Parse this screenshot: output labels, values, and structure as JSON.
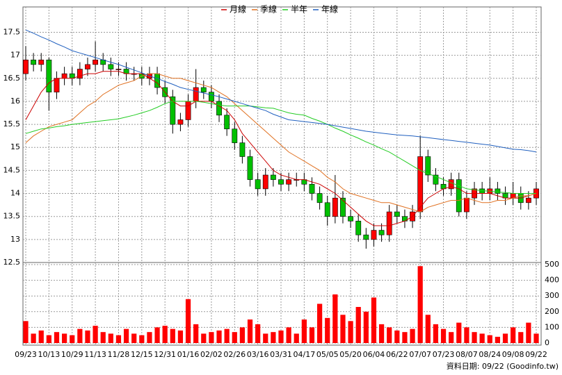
{
  "chart_data": {
    "type": "candlestick",
    "footer": "資料日期: 09/22 (Goodinfo.tw)",
    "categories": [
      "09/23",
      null,
      null,
      "10/13",
      null,
      null,
      "10/29",
      null,
      null,
      "11/13",
      null,
      null,
      "11/28",
      null,
      null,
      "12/15",
      null,
      null,
      "12/31",
      null,
      null,
      "01/16",
      null,
      null,
      "02/02",
      null,
      null,
      "02/26",
      null,
      null,
      "03/16",
      null,
      null,
      "03/31",
      null,
      null,
      "04/17",
      null,
      null,
      "05/05",
      null,
      null,
      "05/20",
      null,
      null,
      "06/04",
      null,
      null,
      "06/22",
      null,
      null,
      "07/07",
      null,
      null,
      "07/23",
      null,
      null,
      "08/07",
      null,
      null,
      "08/24",
      null,
      null,
      "09/08",
      null,
      null,
      "09/22"
    ],
    "open": [
      16.6,
      16.9,
      16.8,
      16.9,
      16.2,
      16.5,
      16.6,
      16.5,
      16.7,
      16.8,
      16.9,
      16.8,
      16.7,
      16.7,
      16.6,
      16.6,
      16.5,
      16.6,
      16.3,
      16.1,
      15.5,
      15.6,
      16.0,
      16.3,
      16.2,
      16.0,
      15.7,
      15.4,
      15.1,
      14.8,
      14.3,
      14.1,
      14.4,
      14.3,
      14.2,
      14.3,
      14.3,
      14.2,
      14.0,
      13.8,
      13.5,
      13.9,
      13.5,
      13.4,
      13.1,
      13.0,
      13.2,
      13.1,
      13.6,
      13.5,
      13.4,
      13.6,
      14.8,
      14.4,
      14.2,
      14.1,
      14.3,
      13.6,
      13.9,
      14.1,
      14.0,
      14.1,
      14.0,
      13.9,
      14.0,
      13.8,
      13.9
    ],
    "high": [
      17.2,
      17.05,
      17.05,
      16.95,
      16.65,
      16.75,
      16.75,
      16.85,
      16.95,
      17.3,
      17.05,
      16.95,
      16.85,
      16.85,
      16.75,
      16.75,
      16.75,
      16.75,
      16.45,
      16.25,
      15.75,
      16.15,
      16.7,
      16.45,
      16.35,
      16.15,
      15.85,
      15.55,
      15.25,
      14.95,
      14.45,
      14.55,
      14.55,
      14.45,
      14.45,
      14.45,
      14.45,
      14.35,
      14.15,
      13.95,
      14.4,
      14.05,
      13.65,
      13.55,
      13.25,
      13.35,
      13.35,
      13.75,
      13.75,
      13.65,
      13.75,
      15.25,
      14.95,
      14.55,
      14.35,
      14.45,
      14.45,
      14.05,
      14.25,
      14.25,
      14.35,
      14.25,
      14.15,
      14.25,
      14.15,
      14.05,
      14.25
    ],
    "low": [
      16.45,
      16.65,
      16.65,
      15.8,
      16.05,
      16.35,
      16.35,
      16.35,
      16.55,
      16.65,
      16.65,
      16.55,
      16.55,
      16.45,
      16.45,
      16.35,
      16.35,
      16.15,
      15.95,
      15.3,
      15.35,
      15.45,
      15.85,
      16.05,
      15.85,
      15.55,
      15.25,
      14.95,
      14.65,
      14.15,
      13.95,
      13.95,
      14.15,
      14.05,
      14.05,
      14.15,
      14.05,
      13.85,
      13.65,
      13.3,
      13.35,
      13.35,
      13.25,
      12.95,
      12.8,
      12.85,
      12.95,
      12.95,
      13.35,
      13.25,
      13.25,
      13.45,
      14.25,
      14.05,
      13.95,
      13.95,
      13.5,
      13.45,
      13.75,
      13.85,
      13.85,
      13.85,
      13.75,
      13.75,
      13.65,
      13.65,
      13.75
    ],
    "close": [
      16.9,
      16.8,
      16.9,
      16.2,
      16.5,
      16.6,
      16.5,
      16.7,
      16.8,
      16.9,
      16.8,
      16.7,
      16.7,
      16.6,
      16.6,
      16.5,
      16.6,
      16.3,
      16.1,
      15.5,
      15.6,
      16.0,
      16.3,
      16.2,
      16.0,
      15.7,
      15.4,
      15.1,
      14.8,
      14.3,
      14.1,
      14.4,
      14.3,
      14.2,
      14.3,
      14.3,
      14.2,
      14.0,
      13.8,
      13.5,
      13.9,
      13.5,
      13.4,
      13.1,
      13.0,
      13.2,
      13.1,
      13.6,
      13.5,
      13.4,
      13.6,
      14.8,
      14.4,
      14.2,
      14.1,
      14.3,
      13.6,
      13.9,
      14.1,
      14.0,
      14.1,
      14.0,
      13.9,
      14.0,
      13.8,
      13.9,
      14.1
    ],
    "volume": [
      140,
      60,
      80,
      50,
      70,
      60,
      50,
      90,
      80,
      110,
      70,
      60,
      50,
      90,
      60,
      50,
      70,
      100,
      110,
      90,
      80,
      280,
      120,
      60,
      70,
      80,
      90,
      70,
      100,
      150,
      120,
      60,
      70,
      80,
      100,
      60,
      150,
      100,
      250,
      160,
      310,
      180,
      140,
      230,
      200,
      290,
      120,
      100,
      80,
      70,
      90,
      490,
      180,
      120,
      90,
      70,
      130,
      100,
      70,
      60,
      50,
      40,
      60,
      100,
      70,
      130,
      60
    ],
    "up_color": "#ff0000",
    "down_color": "#00c000",
    "volume_color": "#ff0000",
    "series": [
      {
        "name": "月線",
        "color": "#cc0000",
        "values": [
          15.6,
          15.9,
          16.2,
          16.4,
          16.5,
          16.5,
          16.5,
          16.55,
          16.6,
          16.6,
          16.65,
          16.65,
          16.65,
          16.6,
          16.6,
          16.6,
          16.5,
          16.4,
          16.2,
          16.0,
          15.9,
          15.9,
          16.0,
          16.0,
          16.0,
          15.9,
          15.8,
          15.6,
          15.3,
          15.1,
          14.9,
          14.7,
          14.5,
          14.4,
          14.35,
          14.3,
          14.3,
          14.25,
          14.2,
          14.1,
          14.0,
          13.85,
          13.7,
          13.55,
          13.4,
          13.3,
          13.3,
          13.3,
          13.35,
          13.4,
          13.5,
          13.7,
          13.9,
          14.0,
          14.1,
          14.15,
          14.1,
          14.0,
          14.0,
          14.0,
          14.0,
          13.95,
          13.9,
          13.9,
          13.9,
          13.95,
          14.0
        ]
      },
      {
        "name": "季線",
        "color": "#e07020",
        "values": [
          15.1,
          15.25,
          15.35,
          15.45,
          15.5,
          15.55,
          15.6,
          15.75,
          15.9,
          16.0,
          16.15,
          16.25,
          16.35,
          16.4,
          16.45,
          16.55,
          16.6,
          16.6,
          16.55,
          16.5,
          16.5,
          16.45,
          16.4,
          16.35,
          16.3,
          16.2,
          16.1,
          15.95,
          15.8,
          15.65,
          15.5,
          15.35,
          15.2,
          15.05,
          14.9,
          14.8,
          14.7,
          14.6,
          14.5,
          14.35,
          14.25,
          14.1,
          14.0,
          13.95,
          13.9,
          13.85,
          13.8,
          13.8,
          13.75,
          13.7,
          13.65,
          13.6,
          13.7,
          13.75,
          13.8,
          13.85,
          13.85,
          13.9,
          13.85,
          13.8,
          13.8,
          13.85,
          13.85,
          13.9,
          13.95,
          13.95,
          14.0
        ]
      },
      {
        "name": "半年",
        "color": "#22cc22",
        "values": [
          15.3,
          15.35,
          15.4,
          15.42,
          15.45,
          15.47,
          15.5,
          15.52,
          15.54,
          15.56,
          15.58,
          15.6,
          15.62,
          15.66,
          15.7,
          15.75,
          15.8,
          15.87,
          15.95,
          16.0,
          16.0,
          16.0,
          16.0,
          15.98,
          15.95,
          15.92,
          15.9,
          15.9,
          15.9,
          15.9,
          15.88,
          15.86,
          15.85,
          15.8,
          15.75,
          15.72,
          15.7,
          15.63,
          15.57,
          15.5,
          15.42,
          15.35,
          15.27,
          15.2,
          15.12,
          15.05,
          14.97,
          14.9,
          14.8,
          14.7,
          14.6,
          14.5,
          14.43,
          14.37,
          14.3,
          14.23,
          14.17,
          14.1,
          14.08,
          14.06,
          14.05,
          14.03,
          14.02,
          14.0,
          14.0,
          14.0,
          14.0
        ]
      },
      {
        "name": "年線",
        "color": "#1f5fbf",
        "values": [
          17.55,
          17.48,
          17.4,
          17.33,
          17.25,
          17.18,
          17.1,
          17.05,
          17.0,
          16.95,
          16.9,
          16.85,
          16.8,
          16.74,
          16.68,
          16.62,
          16.55,
          16.5,
          16.43,
          16.37,
          16.3,
          16.26,
          16.22,
          16.18,
          16.14,
          16.1,
          16.05,
          16.0,
          15.95,
          15.9,
          15.85,
          15.8,
          15.72,
          15.66,
          15.6,
          15.58,
          15.56,
          15.54,
          15.52,
          15.5,
          15.47,
          15.44,
          15.41,
          15.38,
          15.35,
          15.33,
          15.31,
          15.29,
          15.27,
          15.26,
          15.25,
          15.23,
          15.21,
          15.19,
          15.17,
          15.15,
          15.13,
          15.11,
          15.09,
          15.07,
          15.05,
          15.02,
          14.99,
          14.96,
          14.95,
          14.93,
          14.9
        ]
      }
    ],
    "ylim": [
      12.5,
      18.05
    ],
    "yticks": [
      12.5,
      13,
      13.5,
      14,
      14.5,
      15,
      15.5,
      16,
      16.5,
      17,
      17.5
    ],
    "y2lim": [
      0,
      500
    ],
    "y2ticks": [
      0,
      100,
      200,
      300,
      400,
      500
    ],
    "grid": true
  }
}
